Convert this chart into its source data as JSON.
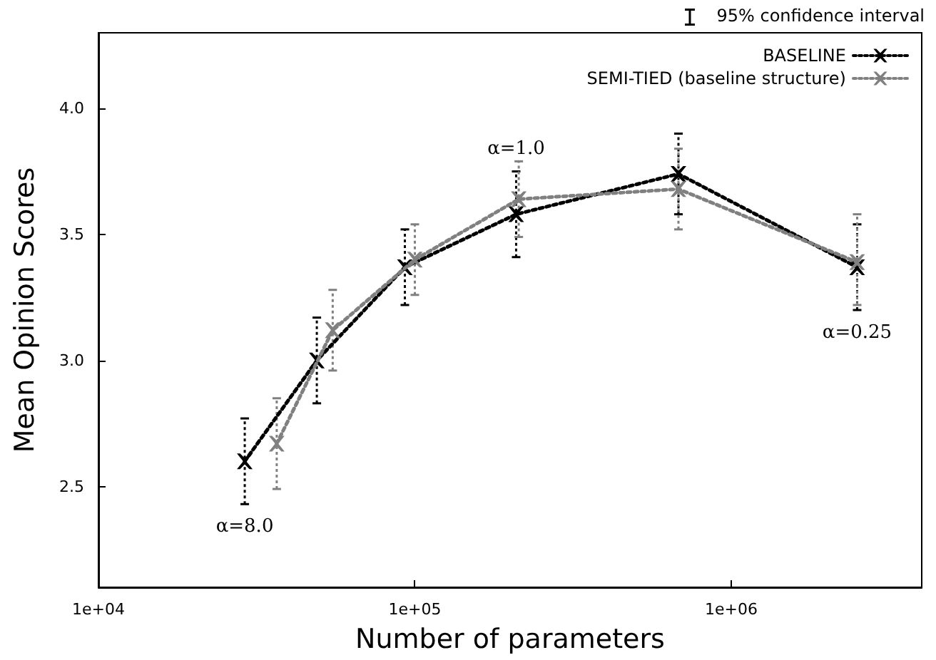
{
  "chart_data": {
    "type": "line",
    "xlabel": "Number of parameters",
    "ylabel": "Mean Opinion Scores",
    "log": "x",
    "xlim": [
      10000,
      4000000
    ],
    "ylim": [
      2.1,
      4.3
    ],
    "xticks": [
      {
        "value": 10000,
        "label": "1e+04"
      },
      {
        "value": 100000,
        "label": "1e+05"
      },
      {
        "value": 1000000,
        "label": "1e+06"
      }
    ],
    "yticks": [
      2.5,
      {
        "value": 3,
        "label": "3.0"
      },
      3.5,
      {
        "value": 4,
        "label": "4.0"
      }
    ],
    "grid": false,
    "legend": "top right",
    "marker": "cross",
    "series": [
      {
        "name": "BASELINE",
        "color": "#000000",
        "line_style": "dotted",
        "x": [
          29000,
          49000,
          93000,
          209000,
          681000,
          2500000
        ],
        "values": [
          2.6,
          3.0,
          3.37,
          3.58,
          3.74,
          3.37
        ],
        "errors": [
          [
            2.43,
            2.77
          ],
          [
            2.83,
            3.17
          ],
          [
            3.22,
            3.52
          ],
          [
            3.41,
            3.75
          ],
          [
            3.58,
            3.9
          ],
          [
            3.2,
            3.54
          ]
        ]
      },
      {
        "name": "SEMI-TIED (baseline structure)",
        "color": "#808080",
        "line_style": "dotted",
        "x": [
          36600,
          55000,
          100000,
          213000,
          681000,
          2500000
        ],
        "values": [
          2.67,
          3.12,
          3.4,
          3.64,
          3.68,
          3.39
        ],
        "errors": [
          [
            2.49,
            2.85
          ],
          [
            2.96,
            3.28
          ],
          [
            3.26,
            3.54
          ],
          [
            3.49,
            3.79
          ],
          [
            3.52,
            3.84
          ],
          [
            3.22,
            3.58
          ]
        ]
      }
    ],
    "annotations": [
      "95% confidence interval",
      {
        "text": "α=8.0",
        "x": 29000,
        "y": 2.6
      },
      {
        "text": "α=1.0",
        "x": 209000,
        "y": 3.58
      },
      {
        "text": "α=0.25",
        "x": 2500000,
        "y": 3.37
      }
    ]
  }
}
